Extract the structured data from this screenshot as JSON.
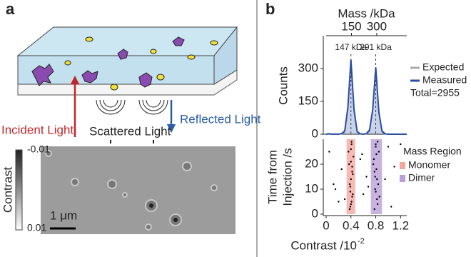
{
  "panel_a": {
    "label": "a",
    "incident": "Incident Light",
    "reflected": "Reflected Light",
    "scattered": "Scattered Light",
    "colorbar_label": "Contrast",
    "colorbar_top": "-0.01",
    "colorbar_bottom": "0.01",
    "scale_bar": "1 μm"
  },
  "chart_data": [
    {
      "type": "line",
      "panel_label": "b",
      "x2_label": "Mass /kDa",
      "x2lim": [
        0,
        478
      ],
      "x2ticks": [
        150,
        300
      ],
      "y_label": "Counts",
      "xlim": [
        0,
        1.3
      ],
      "ylim": [
        0,
        450
      ],
      "yticks": [
        0,
        150,
        300
      ],
      "x": [
        0,
        0.05,
        0.1,
        0.15,
        0.2,
        0.25,
        0.3,
        0.35,
        0.4,
        0.45,
        0.5,
        0.55,
        0.6,
        0.65,
        0.7,
        0.75,
        0.8,
        0.85,
        0.9,
        0.95,
        1.0,
        1.05,
        1.1,
        1.15,
        1.2,
        1.25,
        1.3
      ],
      "series": [
        {
          "name": "Expected",
          "color": "#aaaaaa",
          "values": [
            0,
            0,
            0,
            0,
            0,
            1,
            10,
            130,
            330,
            125,
            10,
            1,
            0,
            1,
            12,
            115,
            300,
            110,
            10,
            1,
            0,
            0,
            0,
            0,
            0,
            0,
            0
          ]
        },
        {
          "name": "Measured",
          "color": "#2b4ea2",
          "values": [
            0,
            2,
            0,
            1,
            0,
            3,
            15,
            120,
            340,
            110,
            12,
            2,
            0,
            3,
            20,
            110,
            305,
            100,
            15,
            2,
            0,
            0,
            0,
            0,
            0,
            0,
            0
          ]
        }
      ],
      "annotations": [
        {
          "text": "147 kDa",
          "x": 0.4
        },
        {
          "text": "291 kDa",
          "x": 0.8
        }
      ],
      "total_label": "Total=2955"
    },
    {
      "type": "scatter",
      "y_label_lines": [
        "Time from",
        "Injection /s"
      ],
      "x_label": "Contrast /10",
      "x_label_exponent": "-2",
      "xlim": [
        0,
        1.3
      ],
      "xticks": [
        0,
        0.4,
        0.8,
        1.2
      ],
      "ylim": [
        0,
        30
      ],
      "yticks": [
        0,
        10,
        20
      ],
      "legend_title": "Mass Region",
      "regions": [
        {
          "name": "Monomer",
          "color": "#f4a8a0",
          "range": [
            0.33,
            0.47
          ]
        },
        {
          "name": "Dimer",
          "color": "#b9a0d8",
          "range": [
            0.72,
            0.9
          ]
        }
      ],
      "series": [
        {
          "color": "#000000",
          "x": [
            0.38,
            0.41,
            0.43,
            0.39,
            0.4,
            0.42,
            0.37,
            0.44,
            0.4,
            0.41,
            0.39,
            0.42,
            0.38,
            0.43,
            0.4,
            0.36,
            0.41,
            0.39,
            0.42,
            0.4,
            0.78,
            0.82,
            0.8,
            0.84,
            0.79,
            0.81,
            0.77,
            0.85,
            0.8,
            0.83,
            0.79,
            0.82,
            0.76,
            0.81,
            0.8,
            0.86,
            0.78,
            0.83,
            0.05,
            0.12,
            0.2,
            0.25,
            0.55,
            0.6,
            0.65,
            1.0,
            1.05,
            1.1,
            0.15,
            0.95,
            1.2,
            0.3,
            0.58,
            0.68
          ],
          "values": [
            2,
            5,
            8,
            11,
            14,
            17,
            20,
            23,
            26,
            29,
            3,
            7,
            12,
            16,
            21,
            25,
            28,
            9,
            19,
            4,
            2,
            6,
            9,
            12,
            15,
            18,
            22,
            25,
            28,
            4,
            10,
            14,
            20,
            24,
            27,
            7,
            17,
            29,
            25,
            12,
            5,
            18,
            22,
            8,
            15,
            27,
            3,
            19,
            10,
            14,
            28,
            6,
            24,
            11
          ]
        }
      ]
    }
  ]
}
